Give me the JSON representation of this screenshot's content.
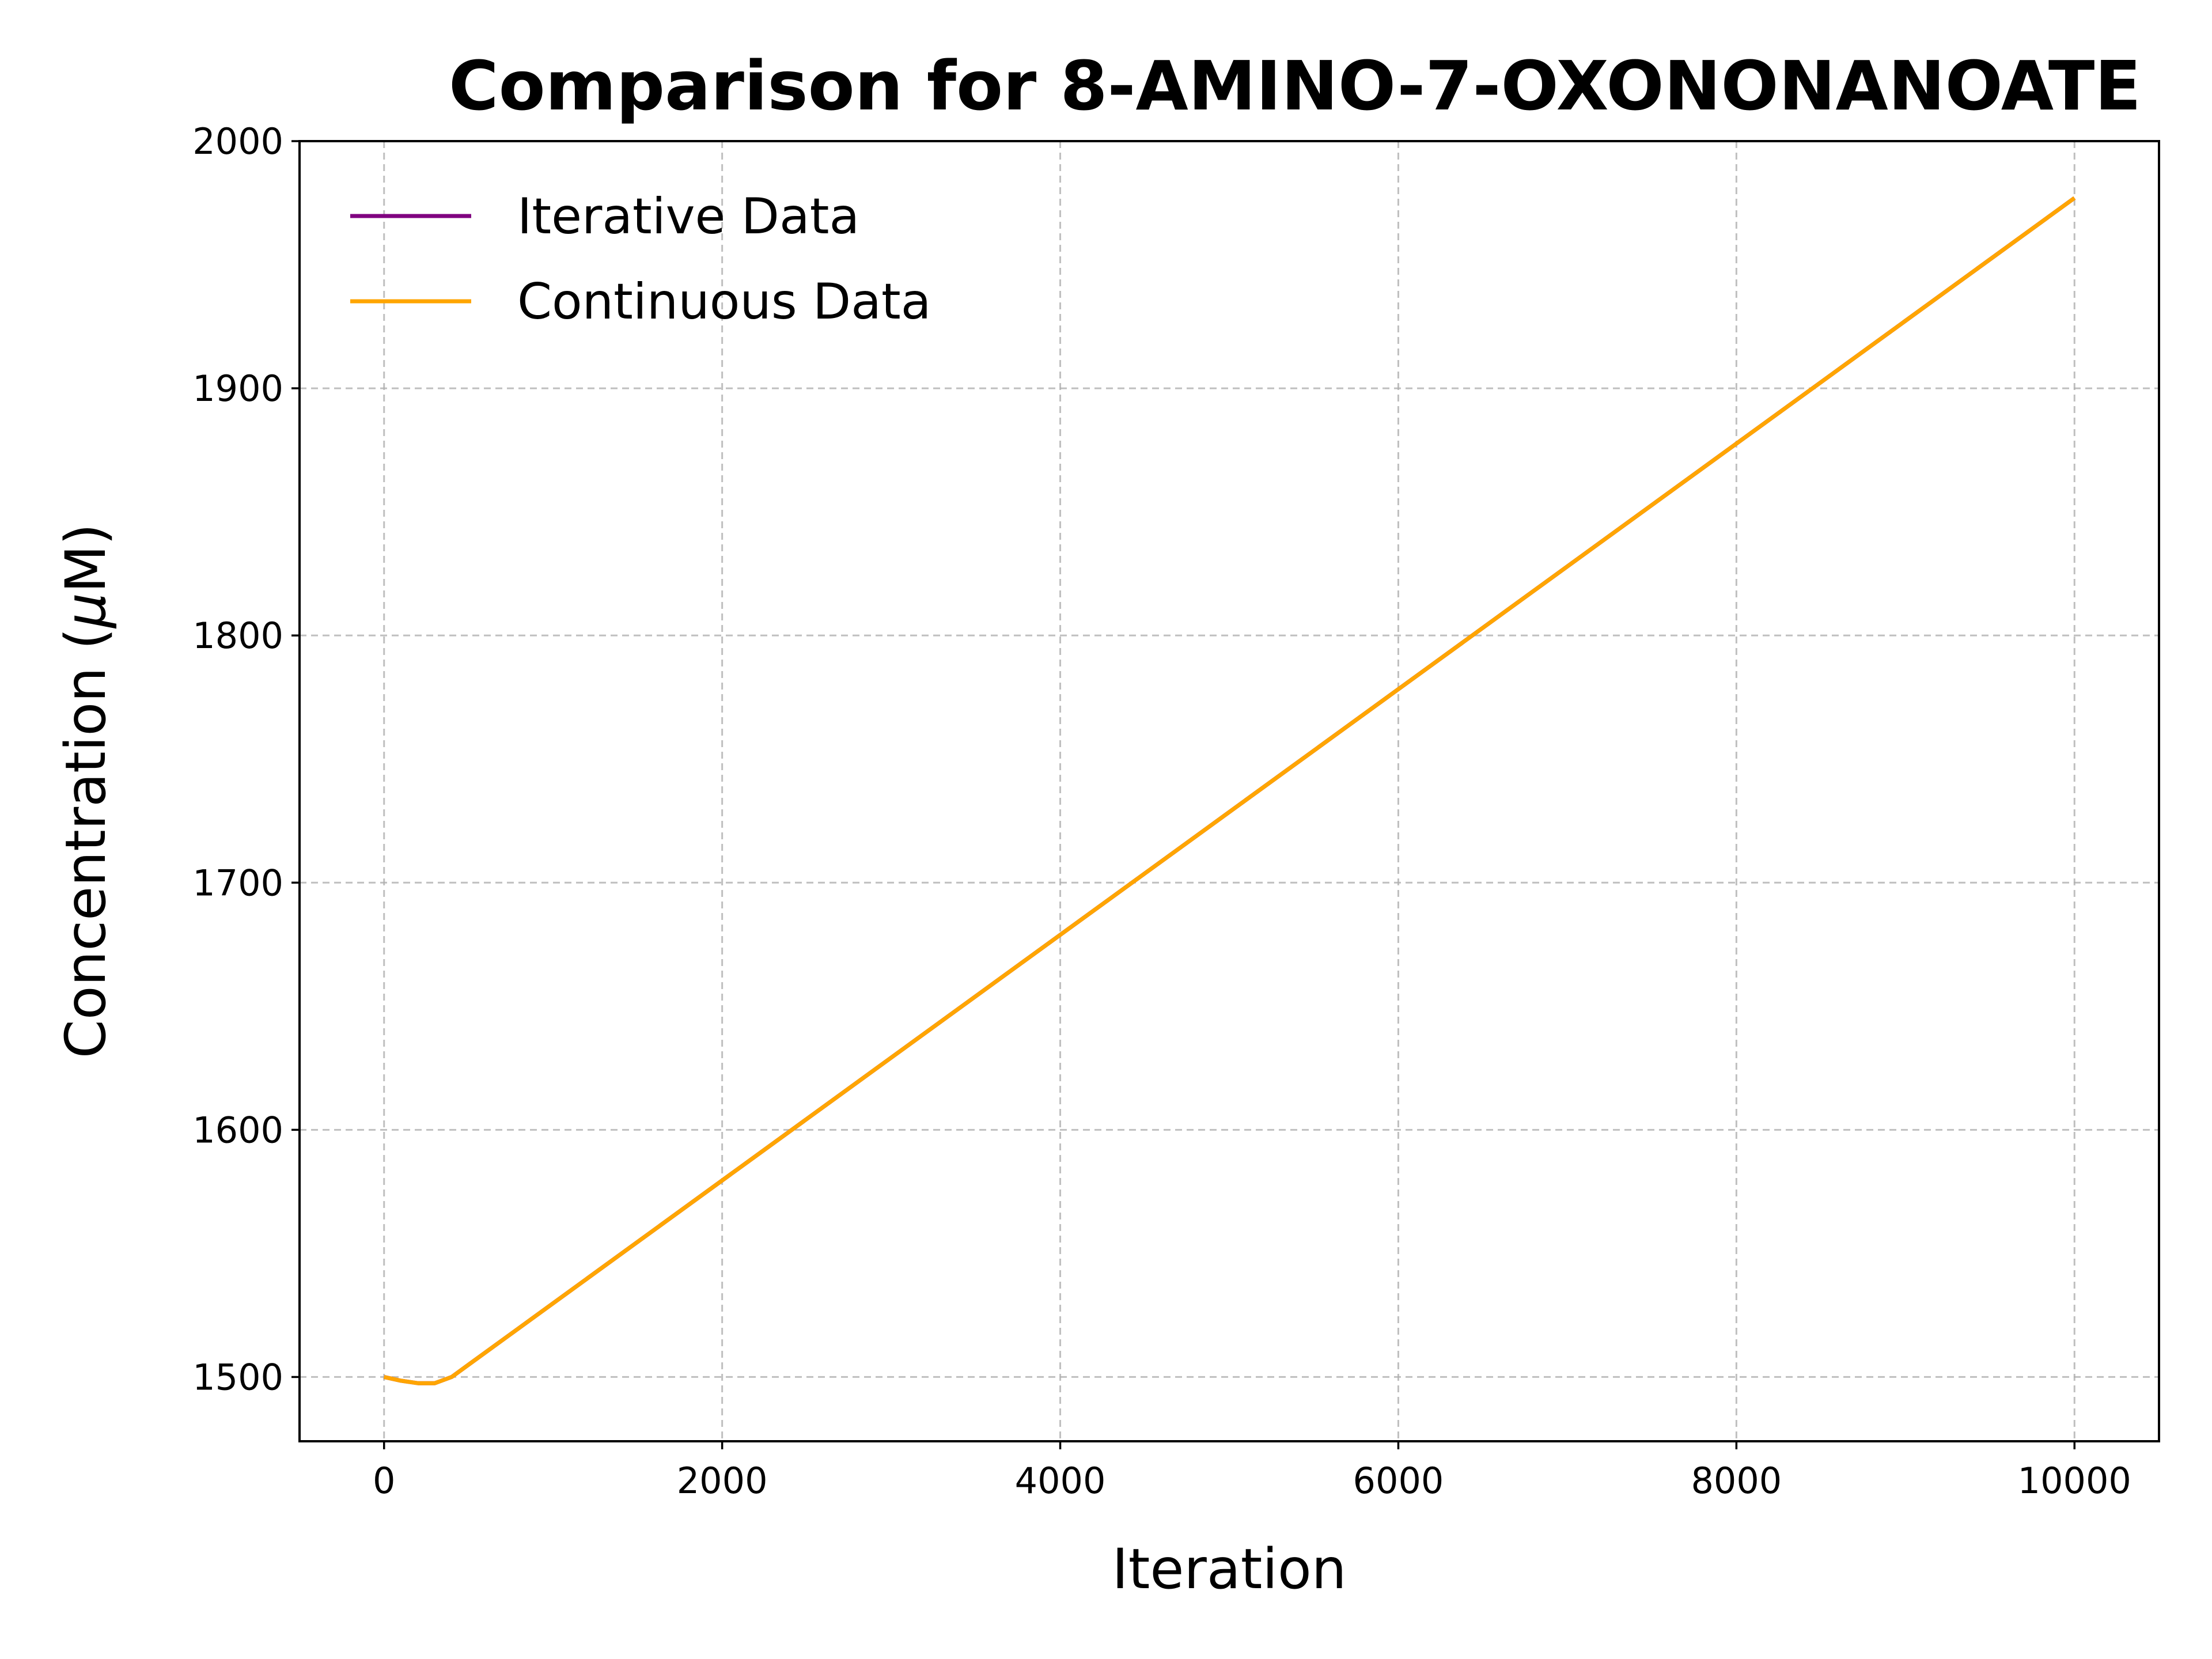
{
  "chart_data": {
    "type": "line",
    "title": "Comparison for 8-AMINO-7-OXONONANOATE",
    "xlabel": "Iteration",
    "ylabel_prefix": "Concentration (",
    "ylabel_mu": "μ",
    "ylabel_suffix": "M)",
    "xlim": [
      -500,
      10500
    ],
    "ylim": [
      1474,
      2000
    ],
    "x_ticks": [
      0,
      2000,
      4000,
      6000,
      8000,
      10000
    ],
    "y_ticks": [
      1500,
      1600,
      1700,
      1800,
      1900,
      2000
    ],
    "grid": true,
    "legend_position": "top-left",
    "series": [
      {
        "name": "Iterative Data",
        "color": "#800080",
        "x": [
          0,
          100,
          200,
          300,
          400,
          500,
          10000
        ],
        "y": [
          1500,
          1498.5,
          1497.5,
          1497.5,
          1500,
          1505,
          1977
        ]
      },
      {
        "name": "Continuous Data",
        "color": "#FFA500",
        "x": [
          0,
          100,
          200,
          300,
          400,
          500,
          10000
        ],
        "y": [
          1500,
          1498.5,
          1497.5,
          1497.5,
          1500,
          1505,
          1977
        ]
      }
    ]
  }
}
